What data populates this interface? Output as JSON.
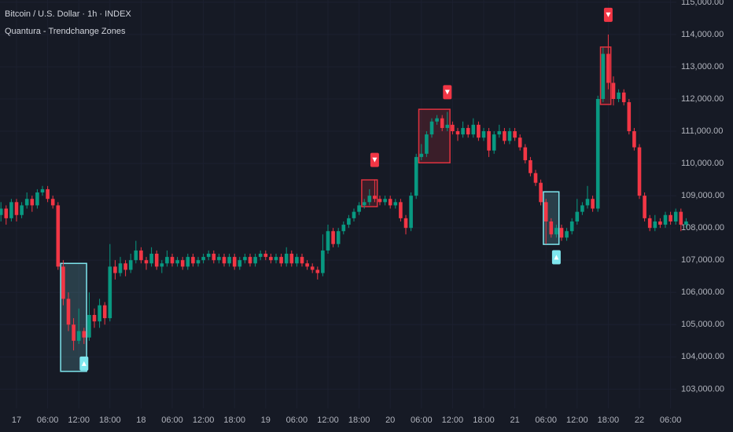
{
  "chart_data": {
    "type": "candlestick",
    "title": "Bitcoin / U.S. Dollar · 1h · INDEX",
    "subtitle": "Quantura - Trendchange Zones",
    "up_color": "#089981",
    "down_color": "#f23645",
    "bull_zone_color": "#7fe6ee",
    "bear_zone_color": "#e0323f",
    "ylim": [
      102400,
      115070
    ],
    "yticks": [
      {
        "value": 103000,
        "label": "103,000.00"
      },
      {
        "value": 104000,
        "label": "104,000.00"
      },
      {
        "value": 105000,
        "label": "105,000.00"
      },
      {
        "value": 106000,
        "label": "106,000.00"
      },
      {
        "value": 107000,
        "label": "107,000.00"
      },
      {
        "value": 108000,
        "label": "108,000.00"
      },
      {
        "value": 109000,
        "label": "109,000.00"
      },
      {
        "value": 110000,
        "label": "110,000.00"
      },
      {
        "value": 111000,
        "label": "111,000.00"
      },
      {
        "value": 112000,
        "label": "112,000.00"
      },
      {
        "value": 113000,
        "label": "113,000.00"
      },
      {
        "value": 114000,
        "label": "114,000.00"
      },
      {
        "value": 115000,
        "label": "115,000.00"
      }
    ],
    "grid": true,
    "categories": [
      null,
      null,
      null,
      "17",
      null,
      null,
      null,
      null,
      null,
      "06:00",
      null,
      null,
      null,
      null,
      null,
      "12:00",
      null,
      null,
      null,
      null,
      null,
      "18:00",
      null,
      null,
      null,
      null,
      null,
      "18",
      null,
      null,
      null,
      null,
      null,
      "06:00",
      null,
      null,
      null,
      null,
      null,
      "12:00",
      null,
      null,
      null,
      null,
      null,
      "18:00",
      null,
      null,
      null,
      null,
      null,
      "19",
      null,
      null,
      null,
      null,
      null,
      "06:00",
      null,
      null,
      null,
      null,
      null,
      "12:00",
      null,
      null,
      null,
      null,
      null,
      "18:00",
      null,
      null,
      null,
      null,
      null,
      "20",
      null,
      null,
      null,
      null,
      null,
      "06:00",
      null,
      null,
      null,
      null,
      null,
      "12:00",
      null,
      null,
      null,
      null,
      null,
      "18:00",
      null,
      null,
      null,
      null,
      null,
      "21",
      null,
      null,
      null,
      null,
      null,
      "06:00",
      null,
      null,
      null,
      null,
      null,
      "12:00",
      null,
      null,
      null,
      null,
      null,
      "18:00",
      null,
      null,
      null,
      null,
      null,
      "22",
      null,
      null,
      null,
      null,
      null,
      "06:00",
      null,
      null,
      null
    ],
    "series": [
      {
        "name": "BTCUSD",
        "values": [
          [
            108400,
            108800,
            108200,
            108600
          ],
          [
            108600,
            108700,
            108100,
            108300
          ],
          [
            108300,
            108900,
            108200,
            108800
          ],
          [
            108800,
            108900,
            108200,
            108400
          ],
          [
            108400,
            108800,
            108300,
            108700
          ],
          [
            108700,
            109100,
            108600,
            108900
          ],
          [
            108900,
            109000,
            108500,
            108700
          ],
          [
            108700,
            109200,
            108600,
            109100
          ],
          [
            109100,
            109300,
            109000,
            109200
          ],
          [
            109200,
            109300,
            108800,
            108900
          ],
          [
            108900,
            109000,
            108600,
            108700
          ],
          [
            108700,
            108800,
            106700,
            106800
          ],
          [
            106800,
            107000,
            105600,
            105800
          ],
          [
            105800,
            106000,
            104800,
            105000
          ],
          [
            105000,
            105200,
            104200,
            104500
          ],
          [
            104500,
            105500,
            104400,
            104800
          ],
          [
            104800,
            104900,
            104400,
            104600
          ],
          [
            104600,
            106000,
            104500,
            105300
          ],
          [
            105300,
            105500,
            104900,
            105100
          ],
          [
            105100,
            105800,
            104900,
            105600
          ],
          [
            105600,
            105700,
            105000,
            105200
          ],
          [
            105200,
            107500,
            105100,
            106800
          ],
          [
            106800,
            107000,
            106400,
            106600
          ],
          [
            106600,
            107100,
            106500,
            106900
          ],
          [
            106900,
            107000,
            106500,
            106700
          ],
          [
            106700,
            107200,
            106600,
            107000
          ],
          [
            107000,
            107600,
            106900,
            107300
          ],
          [
            107300,
            107400,
            106900,
            107000
          ],
          [
            107000,
            107100,
            106700,
            106900
          ],
          [
            106900,
            107400,
            106800,
            107200
          ],
          [
            107200,
            107300,
            106700,
            106800
          ],
          [
            106800,
            107000,
            106600,
            106900
          ],
          [
            106900,
            107300,
            106800,
            107100
          ],
          [
            107100,
            107200,
            106800,
            106900
          ],
          [
            106900,
            107100,
            106800,
            107000
          ],
          [
            107000,
            107100,
            106700,
            106800
          ],
          [
            106800,
            107200,
            106700,
            107100
          ],
          [
            107100,
            107200,
            106800,
            106900
          ],
          [
            106900,
            107100,
            106800,
            107000
          ],
          [
            107000,
            107200,
            106900,
            107100
          ],
          [
            107100,
            107300,
            107000,
            107200
          ],
          [
            107200,
            107300,
            106900,
            107000
          ],
          [
            107000,
            107200,
            106900,
            107100
          ],
          [
            107100,
            107200,
            106800,
            106900
          ],
          [
            106900,
            107200,
            106800,
            107100
          ],
          [
            107100,
            107200,
            106700,
            106800
          ],
          [
            106800,
            107100,
            106700,
            107000
          ],
          [
            107000,
            107200,
            106900,
            107100
          ],
          [
            107100,
            107200,
            106800,
            106900
          ],
          [
            106900,
            107200,
            106800,
            107100
          ],
          [
            107100,
            107300,
            107000,
            107200
          ],
          [
            107200,
            107300,
            107000,
            107100
          ],
          [
            107100,
            107200,
            106900,
            107000
          ],
          [
            107000,
            107200,
            106900,
            107100
          ],
          [
            107100,
            107200,
            106800,
            106900
          ],
          [
            106900,
            107400,
            106800,
            107200
          ],
          [
            107200,
            107300,
            106800,
            106900
          ],
          [
            106900,
            107200,
            106800,
            107100
          ],
          [
            107100,
            107200,
            106800,
            106900
          ],
          [
            106900,
            107000,
            106700,
            106800
          ],
          [
            106800,
            106900,
            106600,
            106700
          ],
          [
            106700,
            106800,
            106400,
            106600
          ],
          [
            106600,
            107800,
            106500,
            107300
          ],
          [
            107300,
            108100,
            107200,
            107900
          ],
          [
            107900,
            108000,
            107400,
            107500
          ],
          [
            107500,
            108000,
            107400,
            107900
          ],
          [
            107900,
            108200,
            107800,
            108100
          ],
          [
            108100,
            108400,
            108000,
            108300
          ],
          [
            108300,
            108600,
            108200,
            108500
          ],
          [
            108500,
            108800,
            108400,
            108700
          ],
          [
            108700,
            108900,
            108600,
            108800
          ],
          [
            108800,
            109200,
            108700,
            109000
          ],
          [
            109000,
            109500,
            108800,
            108900
          ],
          [
            108900,
            109000,
            108700,
            108800
          ],
          [
            108800,
            109000,
            108700,
            108900
          ],
          [
            108900,
            109000,
            108600,
            108700
          ],
          [
            108700,
            108900,
            108600,
            108800
          ],
          [
            108800,
            108900,
            108200,
            108300
          ],
          [
            108300,
            108400,
            107800,
            108000
          ],
          [
            108000,
            109100,
            107900,
            109000
          ],
          [
            109000,
            110300,
            108900,
            110200
          ],
          [
            110200,
            110600,
            110100,
            110300
          ],
          [
            110300,
            111000,
            110200,
            110900
          ],
          [
            110900,
            111400,
            110800,
            111300
          ],
          [
            111300,
            111500,
            111200,
            111400
          ],
          [
            111400,
            111500,
            111000,
            111100
          ],
          [
            111100,
            111600,
            111000,
            111200
          ],
          [
            111200,
            111300,
            110900,
            111000
          ],
          [
            111000,
            111100,
            110700,
            110900
          ],
          [
            110900,
            111300,
            110800,
            111100
          ],
          [
            111100,
            111200,
            110800,
            110900
          ],
          [
            110900,
            111400,
            110800,
            111200
          ],
          [
            111200,
            111300,
            110700,
            110800
          ],
          [
            110800,
            111100,
            110700,
            111000
          ],
          [
            111000,
            111100,
            110200,
            110400
          ],
          [
            110400,
            111000,
            110300,
            110900
          ],
          [
            110900,
            111200,
            110800,
            111000
          ],
          [
            111000,
            111100,
            110600,
            110700
          ],
          [
            110700,
            111100,
            110600,
            111000
          ],
          [
            111000,
            111100,
            110700,
            110800
          ],
          [
            110800,
            110900,
            110400,
            110500
          ],
          [
            110500,
            110600,
            110000,
            110100
          ],
          [
            110100,
            110200,
            109600,
            109700
          ],
          [
            109700,
            109800,
            109300,
            109400
          ],
          [
            109400,
            109500,
            108700,
            108800
          ],
          [
            108800,
            108900,
            107500,
            108200
          ],
          [
            108200,
            108300,
            107700,
            107800
          ],
          [
            107800,
            108100,
            107700,
            108000
          ],
          [
            108000,
            108100,
            107600,
            107700
          ],
          [
            107700,
            108000,
            107600,
            107900
          ],
          [
            107900,
            108300,
            107800,
            108200
          ],
          [
            108200,
            108900,
            108100,
            108500
          ],
          [
            108500,
            108800,
            108400,
            108700
          ],
          [
            108700,
            109300,
            108600,
            108900
          ],
          [
            108900,
            109000,
            108500,
            108600
          ],
          [
            108600,
            112100,
            108500,
            112000
          ],
          [
            112000,
            113600,
            111900,
            113400
          ],
          [
            113400,
            114000,
            112300,
            112500
          ],
          [
            112500,
            112700,
            111800,
            112000
          ],
          [
            112000,
            112300,
            111900,
            112200
          ],
          [
            112200,
            112300,
            111800,
            111900
          ],
          [
            111900,
            112000,
            110900,
            111000
          ],
          [
            111000,
            111100,
            110400,
            110500
          ],
          [
            110500,
            110600,
            108900,
            109000
          ],
          [
            109000,
            109100,
            108200,
            108300
          ],
          [
            108300,
            108400,
            107900,
            108000
          ],
          [
            108000,
            108400,
            107900,
            108200
          ],
          [
            108200,
            108300,
            108000,
            108100
          ],
          [
            108100,
            108500,
            108000,
            108400
          ],
          [
            108400,
            108500,
            108100,
            108200
          ],
          [
            108200,
            108600,
            108100,
            108500
          ],
          [
            108500,
            108600,
            107900,
            108100
          ],
          [
            108100,
            108300,
            108000,
            108200
          ]
        ]
      }
    ],
    "zones": [
      {
        "kind": "bullish",
        "start": 12,
        "end": 16,
        "top": 106900,
        "bottom": 103550
      },
      {
        "kind": "bearish",
        "start": 70,
        "end": 72,
        "top": 109490,
        "bottom": 108660
      },
      {
        "kind": "bearish",
        "start": 81,
        "end": 86,
        "top": 111680,
        "bottom": 110020
      },
      {
        "kind": "bullish",
        "start": 105,
        "end": 107,
        "top": 109120,
        "bottom": 107490
      },
      {
        "kind": "bearish",
        "start": 116,
        "end": 117,
        "top": 113610,
        "bottom": 111830
      }
    ]
  }
}
